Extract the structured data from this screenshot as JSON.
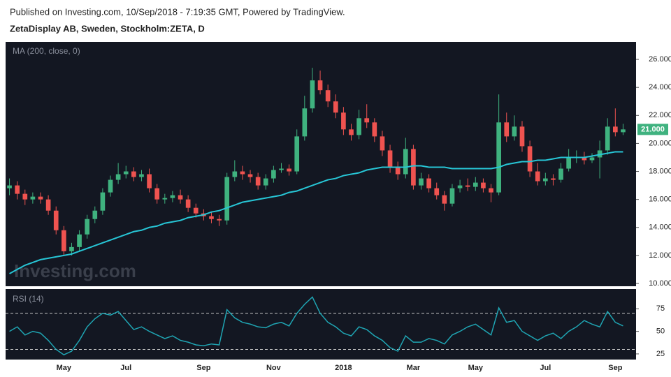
{
  "header": {
    "published": "Published on Investing.com, 10/Sep/2018 - 7:19:35 GMT, Powered by TradingView.",
    "symbol": "ZetaDisplay AB, Sweden, Stockholm:ZETA, D"
  },
  "chart_data": [
    {
      "type": "candlestick",
      "watermark": "Investing.com",
      "categories": [
        null,
        null,
        null,
        null,
        null,
        null,
        null,
        "May",
        null,
        null,
        null,
        null,
        null,
        null,
        null,
        "Jul",
        null,
        null,
        null,
        null,
        null,
        null,
        null,
        null,
        null,
        "Sep",
        null,
        null,
        null,
        null,
        null,
        null,
        null,
        null,
        "Nov",
        null,
        null,
        null,
        null,
        null,
        null,
        null,
        null,
        "2018",
        null,
        null,
        null,
        null,
        null,
        null,
        null,
        null,
        "Mar",
        null,
        null,
        null,
        null,
        null,
        null,
        null,
        "May",
        null,
        null,
        null,
        null,
        null,
        null,
        null,
        null,
        "Jul",
        null,
        null,
        null,
        null,
        null,
        null,
        null,
        null,
        "Sep",
        null
      ],
      "open": [
        16.8,
        17.0,
        16.4,
        16.0,
        16.2,
        16.0,
        15.2,
        13.8,
        12.3,
        12.6,
        13.5,
        14.6,
        15.2,
        16.5,
        17.4,
        17.8,
        18.0,
        17.6,
        17.8,
        16.8,
        16.0,
        16.1,
        16.3,
        16.0,
        15.4,
        15.0,
        14.8,
        14.6,
        14.5,
        17.6,
        18.0,
        17.8,
        17.6,
        17.0,
        17.5,
        18.1,
        18.2,
        18.0,
        20.5,
        22.5,
        24.5,
        23.8,
        23.0,
        22.2,
        21.0,
        20.6,
        21.8,
        21.5,
        20.5,
        19.5,
        18.3,
        17.8,
        19.6,
        17.0,
        17.5,
        16.8,
        16.3,
        15.7,
        16.8,
        17.0,
        16.9,
        17.2,
        16.8,
        16.5,
        21.5,
        20.5,
        21.2,
        19.8,
        18.0,
        17.3,
        17.5,
        17.4,
        18.2,
        19.0,
        19.0,
        18.8,
        19.0,
        19.5,
        21.2,
        20.8
      ],
      "high": [
        17.5,
        17.3,
        16.7,
        16.5,
        16.5,
        16.3,
        15.5,
        14.1,
        12.9,
        13.8,
        14.9,
        15.5,
        16.8,
        17.7,
        18.6,
        18.4,
        18.3,
        18.1,
        18.2,
        17.1,
        16.4,
        16.6,
        16.7,
        16.3,
        15.7,
        15.3,
        15.1,
        14.9,
        17.9,
        18.8,
        18.4,
        18.1,
        17.9,
        17.8,
        18.4,
        18.6,
        18.5,
        21.0,
        23.4,
        25.4,
        25.2,
        24.2,
        23.5,
        22.6,
        21.4,
        22.4,
        22.8,
        21.8,
        20.9,
        19.9,
        18.7,
        20.4,
        19.9,
        17.9,
        17.8,
        17.2,
        16.6,
        17.1,
        17.4,
        17.5,
        17.6,
        17.5,
        17.1,
        23.5,
        22.2,
        22.0,
        21.6,
        20.2,
        18.6,
        17.9,
        17.8,
        18.6,
        19.6,
        19.5,
        19.4,
        19.3,
        20.2,
        21.8,
        22.5,
        21.4
      ],
      "low": [
        16.3,
        16.0,
        15.6,
        15.7,
        15.7,
        14.9,
        13.5,
        12.0,
        12.0,
        12.3,
        13.2,
        14.3,
        14.9,
        16.2,
        17.1,
        17.5,
        17.3,
        17.3,
        16.5,
        15.7,
        15.7,
        15.8,
        15.7,
        15.1,
        14.7,
        14.5,
        14.3,
        14.1,
        14.2,
        17.3,
        17.4,
        17.2,
        16.7,
        16.7,
        17.2,
        17.9,
        17.7,
        17.8,
        20.2,
        22.2,
        23.5,
        22.6,
        21.8,
        20.6,
        20.2,
        20.3,
        21.1,
        20.1,
        19.1,
        17.9,
        17.4,
        17.5,
        16.7,
        16.7,
        16.5,
        16.0,
        15.2,
        15.5,
        16.5,
        16.6,
        16.6,
        16.5,
        15.8,
        16.3,
        20.1,
        20.2,
        19.4,
        17.6,
        17.0,
        17.0,
        17.0,
        17.2,
        18.0,
        18.6,
        18.5,
        18.6,
        17.5,
        19.2,
        20.5,
        20.6
      ],
      "close": [
        17.0,
        16.4,
        16.0,
        16.2,
        16.0,
        15.2,
        13.8,
        12.3,
        12.6,
        13.5,
        14.6,
        15.2,
        16.5,
        17.4,
        17.8,
        18.0,
        17.6,
        17.8,
        16.8,
        16.0,
        16.1,
        16.3,
        16.0,
        15.4,
        15.0,
        14.8,
        14.6,
        14.5,
        17.6,
        18.0,
        17.8,
        17.6,
        17.0,
        17.5,
        18.1,
        18.2,
        18.0,
        20.5,
        22.5,
        24.5,
        23.8,
        23.0,
        22.2,
        21.0,
        20.6,
        21.8,
        21.5,
        20.5,
        19.5,
        18.3,
        17.8,
        19.6,
        17.0,
        17.5,
        16.8,
        16.3,
        15.7,
        16.8,
        17.0,
        16.9,
        17.2,
        16.8,
        16.5,
        21.5,
        20.5,
        21.2,
        19.8,
        18.0,
        17.3,
        17.5,
        17.4,
        18.2,
        19.0,
        19.0,
        18.8,
        19.0,
        19.5,
        21.2,
        20.8,
        21.0
      ],
      "up_color": "#3fb27f",
      "down_color": "#ef5350",
      "series": [
        {
          "name": "MA (200, close, 0)",
          "color": "#27c6d6",
          "values": [
            10.7,
            11.0,
            11.3,
            11.5,
            11.7,
            11.8,
            11.9,
            12.0,
            12.1,
            12.3,
            12.5,
            12.7,
            12.9,
            13.1,
            13.3,
            13.5,
            13.7,
            13.8,
            14.0,
            14.1,
            14.3,
            14.4,
            14.5,
            14.7,
            14.8,
            14.9,
            15.1,
            15.2,
            15.4,
            15.6,
            15.8,
            15.9,
            16.0,
            16.1,
            16.2,
            16.3,
            16.5,
            16.6,
            16.8,
            17.0,
            17.2,
            17.4,
            17.5,
            17.7,
            17.8,
            17.9,
            18.1,
            18.2,
            18.3,
            18.3,
            18.3,
            18.3,
            18.4,
            18.4,
            18.3,
            18.3,
            18.3,
            18.2,
            18.2,
            18.2,
            18.2,
            18.2,
            18.2,
            18.3,
            18.5,
            18.6,
            18.7,
            18.7,
            18.8,
            18.8,
            18.9,
            19.0,
            19.0,
            19.0,
            19.0,
            19.1,
            19.2,
            19.3,
            19.4,
            19.4
          ]
        }
      ],
      "last_price": {
        "value": 21.0,
        "label": "21.000"
      },
      "ylim": [
        9.8,
        27.25
      ],
      "yticks": [
        {
          "value": 10,
          "label": "10.000"
        },
        {
          "value": 12,
          "label": "12.000"
        },
        {
          "value": 14,
          "label": "14.000"
        },
        {
          "value": 16,
          "label": "16.000"
        },
        {
          "value": 18,
          "label": "18.000"
        },
        {
          "value": 20,
          "label": "20.000"
        },
        {
          "value": 22,
          "label": "22.000"
        },
        {
          "value": 24,
          "label": "24.000"
        },
        {
          "value": 26,
          "label": "26.000"
        }
      ]
    },
    {
      "type": "line",
      "series": [
        {
          "name": "RSI (14)",
          "color": "#1fa5b3",
          "values": [
            50,
            55,
            46,
            50,
            48,
            40,
            30,
            24,
            28,
            40,
            55,
            64,
            70,
            68,
            72,
            62,
            52,
            55,
            50,
            46,
            42,
            45,
            40,
            38,
            35,
            34,
            36,
            35,
            74,
            65,
            60,
            58,
            55,
            54,
            58,
            60,
            56,
            70,
            80,
            88,
            70,
            60,
            55,
            48,
            45,
            55,
            52,
            45,
            40,
            32,
            28,
            45,
            38,
            38,
            42,
            40,
            36,
            46,
            50,
            55,
            58,
            52,
            46,
            76,
            60,
            62,
            50,
            45,
            40,
            45,
            48,
            42,
            50,
            55,
            62,
            58,
            55,
            72,
            60,
            56
          ]
        }
      ],
      "levels": [
        30,
        70
      ],
      "ylim": [
        18.75,
        96.9
      ],
      "yticks": [
        25,
        50,
        75
      ]
    }
  ]
}
